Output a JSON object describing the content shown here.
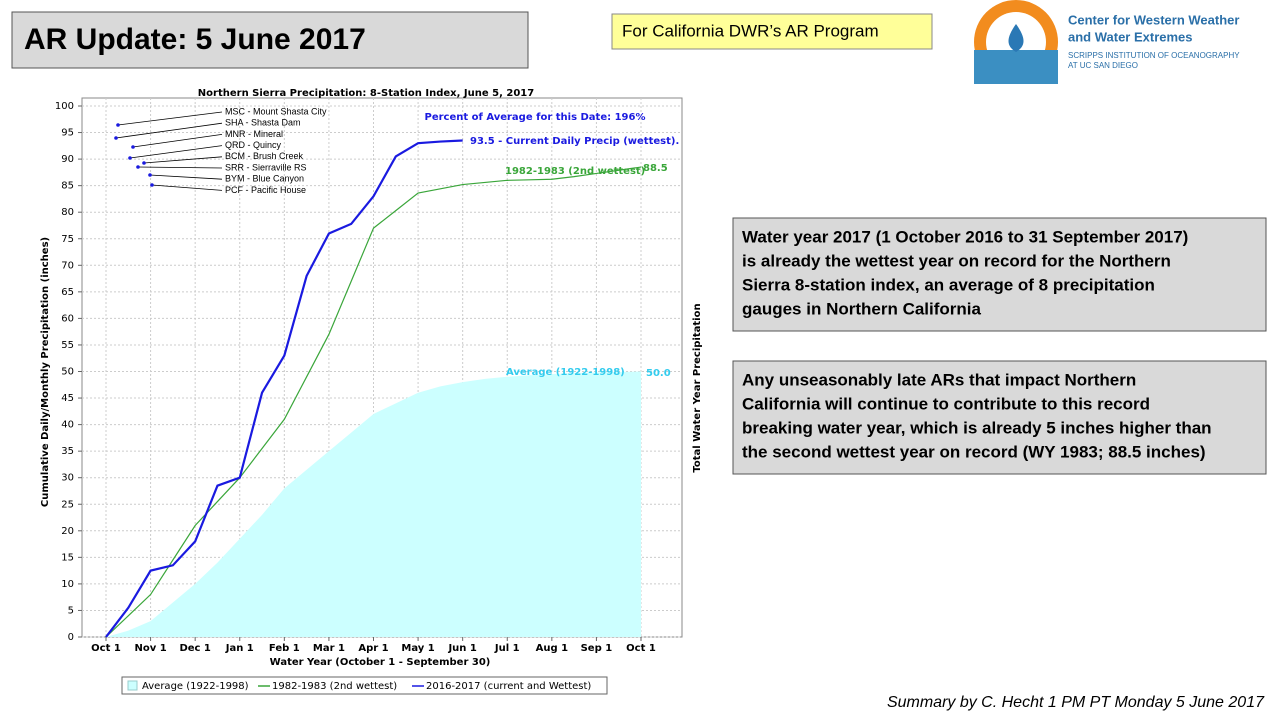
{
  "slide": {
    "title": "AR Update: 5 June 2017",
    "program": "For California DWR’s AR Program",
    "logo_name": [
      "Center for Western Weather",
      "and Water Extremes"
    ],
    "logo_sub": [
      "SCRIPPS INSTITUTION OF OCEANOGRAPHY",
      "AT UC SAN DIEGO"
    ],
    "box1": [
      "Water year 2017 (1 October 2016 to 31 September 2017)",
      "is already the wettest year on record for the Northern",
      "Sierra 8-station index, an average of 8 precipitation",
      "gauges in Northern California"
    ],
    "box2": [
      "Any unseasonably late ARs that impact Northern",
      "California will continue to contribute to this record",
      "breaking water year, which is already 5 inches higher than",
      "the second wettest year on record (WY 1983; 88.5 inches)"
    ],
    "footer": "Summary by C. Hecht 1 PM PT Monday 5 June 2017"
  },
  "chart_data": {
    "type": "line",
    "title": "Northern Sierra Precipitation: 8-Station Index, June 5, 2017",
    "x_label": "Water Year (October 1 - September 30)",
    "y_label": "Cumulative Daily/Monthly Precipitation (inches)",
    "y2_label": "Total Water Year Precipitation",
    "categories": [
      "Oct 1",
      null,
      "Nov 1",
      null,
      "Dec 1",
      null,
      "Jan 1",
      null,
      "Feb 1",
      null,
      "Mar 1",
      null,
      "Apr 1",
      null,
      "May 1",
      null,
      "Jun 1",
      null,
      "Jul 1",
      null,
      "Aug 1",
      null,
      "Sep 1",
      null,
      "Oct 1"
    ],
    "series": [
      {
        "name": "Average (1922-1998)",
        "color": "#ccffff",
        "style": "area",
        "values": [
          0,
          1.2,
          3,
          6.5,
          10,
          14,
          18.5,
          23,
          28,
          31.5,
          35,
          38.5,
          42,
          44,
          46,
          47.2,
          48,
          48.6,
          49,
          49.3,
          49.5,
          49.7,
          49.8,
          49.9,
          50
        ]
      },
      {
        "name": "1982-1983 (2nd wettest)",
        "color": "#3aa63a",
        "style": "line",
        "values": [
          0,
          4,
          8,
          14.5,
          21,
          25.5,
          30,
          35.5,
          41,
          49,
          57,
          67,
          77,
          80.3,
          83.6,
          84.4,
          85.2,
          85.6,
          86,
          86.1,
          86.2,
          86.7,
          87.3,
          87.9,
          88.5
        ]
      },
      {
        "name": "2016-2017 (current and Wettest)",
        "color": "#1a1ae0",
        "style": "line",
        "values": [
          0,
          5.5,
          12.5,
          13.5,
          18,
          28.5,
          30,
          46,
          53,
          68,
          76,
          77.8,
          83,
          90.5,
          93,
          93.3,
          93.5,
          null,
          null,
          null,
          null,
          null,
          null,
          null,
          null
        ]
      }
    ],
    "ylim": [
      0,
      100
    ],
    "yticks": [
      0,
      5,
      10,
      15,
      20,
      25,
      30,
      35,
      40,
      45,
      50,
      55,
      60,
      65,
      70,
      75,
      80,
      85,
      90,
      95,
      100
    ],
    "grid": true,
    "legend": "bottom",
    "annotations": [
      "Percent of Average for this Date: 196%",
      "93.5 -  Current Daily Precip (wettest).",
      "1982-1983 (2nd wettest)",
      "88.5",
      "Average (1922-1998)",
      "50.0"
    ],
    "stations": [
      "MSC - Mount Shasta City",
      "SHA - Shasta Dam",
      "MNR - Mineral",
      "QRD - Quincy",
      "BCM - Brush Creek",
      "SRR - Sierraville RS",
      "BYM - Blue Canyon",
      "PCF - Pacific House"
    ]
  }
}
